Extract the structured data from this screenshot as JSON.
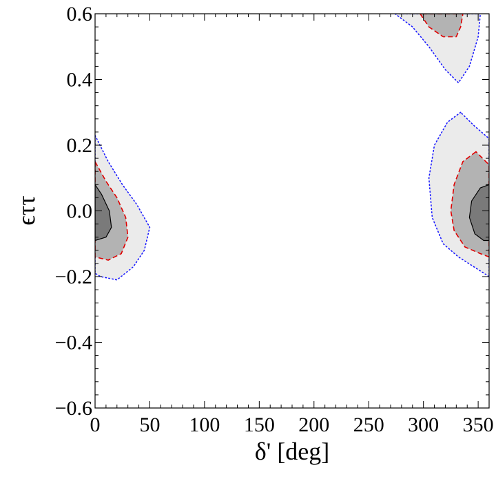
{
  "chart_data": {
    "type": "contour",
    "xlabel": "δ' [deg]",
    "ylabel": "ϵττ",
    "xlim": [
      0,
      360
    ],
    "ylim": [
      -0.6,
      0.6
    ],
    "x_ticks": [
      0,
      50,
      100,
      150,
      200,
      250,
      300,
      350
    ],
    "y_ticks": [
      -0.6,
      -0.4,
      -0.2,
      0.0,
      0.2,
      0.4,
      0.6
    ],
    "x_tick_labels": [
      "0",
      "50",
      "100",
      "150",
      "200",
      "250",
      "300",
      "350"
    ],
    "y_tick_labels": [
      "−0.6",
      "−0.4",
      "−0.2",
      "0.0",
      "0.2",
      "0.4",
      "0.6"
    ],
    "grid": false,
    "colors": {
      "outer_fill": "#ebebeb",
      "middle_fill": "#b3b3b3",
      "inner_fill": "#7a7a7a",
      "outer_line": "#1a1aff",
      "middle_line": "#e00000",
      "inner_line": "#000000"
    },
    "regions": [
      {
        "level": "outer",
        "style": "dotted",
        "polygons": [
          [
            [
              0,
              0.23
            ],
            [
              12,
              0.15
            ],
            [
              25,
              0.08
            ],
            [
              38,
              0.02
            ],
            [
              50,
              -0.05
            ],
            [
              45,
              -0.12
            ],
            [
              35,
              -0.17
            ],
            [
              20,
              -0.21
            ],
            [
              5,
              -0.2
            ],
            [
              0,
              -0.19
            ]
          ],
          [
            [
              334,
              0.3
            ],
            [
              322,
              0.27
            ],
            [
              310,
              0.2
            ],
            [
              305,
              0.1
            ],
            [
              308,
              -0.02
            ],
            [
              318,
              -0.1
            ],
            [
              332,
              -0.14
            ],
            [
              346,
              -0.17
            ],
            [
              360,
              -0.2
            ],
            [
              360,
              0.22
            ],
            [
              346,
              0.26
            ]
          ],
          [
            [
              274,
              0.6
            ],
            [
              290,
              0.56
            ],
            [
              305,
              0.5
            ],
            [
              320,
              0.43
            ],
            [
              332,
              0.39
            ],
            [
              342,
              0.44
            ],
            [
              350,
              0.53
            ],
            [
              352,
              0.6
            ]
          ]
        ]
      },
      {
        "level": "middle",
        "style": "dashed",
        "polygons": [
          [
            [
              0,
              0.15
            ],
            [
              10,
              0.09
            ],
            [
              20,
              0.04
            ],
            [
              28,
              -0.02
            ],
            [
              30,
              -0.08
            ],
            [
              24,
              -0.13
            ],
            [
              12,
              -0.15
            ],
            [
              0,
              -0.14
            ]
          ],
          [
            [
              348,
              0.18
            ],
            [
              336,
              0.15
            ],
            [
              328,
              0.08
            ],
            [
              325,
              0.0
            ],
            [
              328,
              -0.06
            ],
            [
              338,
              -0.11
            ],
            [
              352,
              -0.13
            ],
            [
              360,
              -0.14
            ],
            [
              360,
              0.14
            ]
          ],
          [
            [
              297,
              0.6
            ],
            [
              305,
              0.56
            ],
            [
              318,
              0.53
            ],
            [
              330,
              0.53
            ],
            [
              334,
              0.56
            ],
            [
              336,
              0.6
            ]
          ]
        ]
      },
      {
        "level": "inner",
        "style": "solid",
        "polygons": [
          [
            [
              0,
              0.08
            ],
            [
              6,
              0.05
            ],
            [
              13,
              0.0
            ],
            [
              15,
              -0.05
            ],
            [
              10,
              -0.08
            ],
            [
              0,
              -0.09
            ]
          ],
          [
            [
              360,
              0.08
            ],
            [
              352,
              0.07
            ],
            [
              344,
              0.03
            ],
            [
              342,
              -0.02
            ],
            [
              347,
              -0.07
            ],
            [
              355,
              -0.09
            ],
            [
              360,
              -0.09
            ]
          ]
        ]
      }
    ]
  }
}
